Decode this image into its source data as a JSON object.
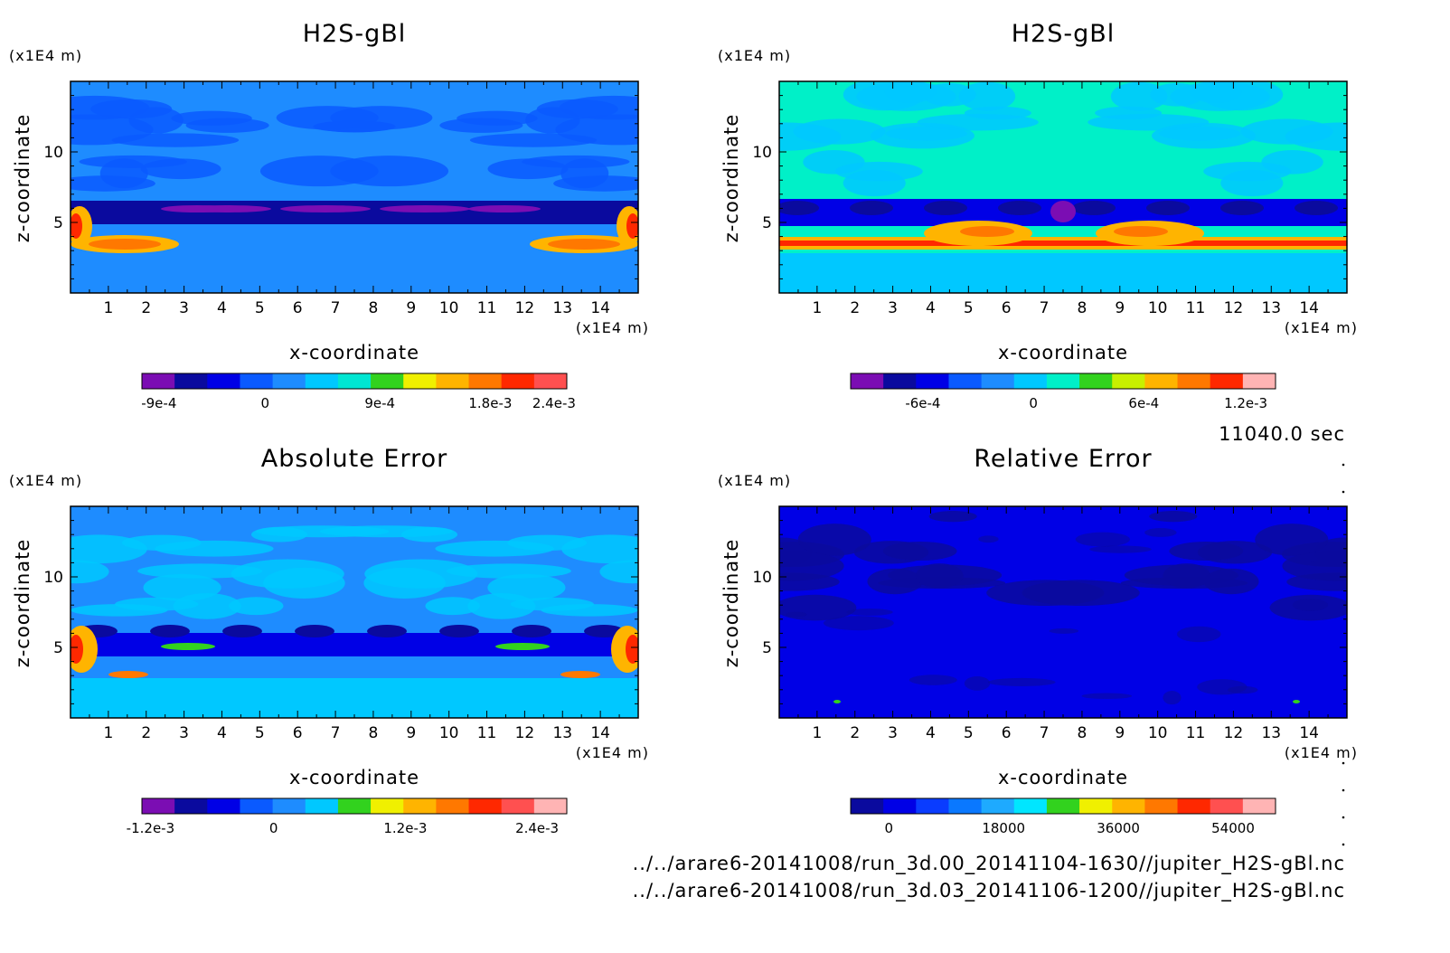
{
  "page": {
    "time_label": "11040.0 sec",
    "footer_lines": [
      "../../arare6-20141008/run_3d.00_20141104-1630//jupiter_H2S-gBl.nc",
      "../../arare6-20141008/run_3d.03_20141106-1200//jupiter_H2S-gBl.nc"
    ]
  },
  "chart_data": [
    {
      "type": "heatmap",
      "title": "H2S-gBl",
      "xlabel": "x-coordinate",
      "ylabel": "z-coordinate",
      "x_unit": "(x1E4 m)",
      "y_unit": "(x1E4 m)",
      "xlim": [
        0,
        15
      ],
      "ylim": [
        0,
        15
      ],
      "x_ticks": [
        1,
        2,
        3,
        4,
        5,
        6,
        7,
        8,
        9,
        10,
        11,
        12,
        13,
        14
      ],
      "y_ticks": [
        5,
        10
      ],
      "colorbar": {
        "colors": [
          "#7b0db3",
          "#0a0a9e",
          "#0000e6",
          "#0a5aff",
          "#1e8cff",
          "#00c8ff",
          "#00e6d2",
          "#32d21e",
          "#f0f000",
          "#ffb400",
          "#ff7800",
          "#ff2800",
          "#ff5050"
        ],
        "tick_labels": [
          "-9e-4",
          "0",
          "9e-4",
          "1.8e-3",
          "2.4e-3"
        ]
      }
    },
    {
      "type": "heatmap",
      "title": "H2S-gBl",
      "xlabel": "x-coordinate",
      "ylabel": "z-coordinate",
      "x_unit": "(x1E4 m)",
      "y_unit": "(x1E4 m)",
      "xlim": [
        0,
        15
      ],
      "ylim": [
        0,
        15
      ],
      "x_ticks": [
        1,
        2,
        3,
        4,
        5,
        6,
        7,
        8,
        9,
        10,
        11,
        12,
        13,
        14
      ],
      "y_ticks": [
        5,
        10
      ],
      "colorbar": {
        "colors": [
          "#7b0db3",
          "#0a0a9e",
          "#0000e6",
          "#0a5aff",
          "#1e8cff",
          "#00c8ff",
          "#00f0c8",
          "#32d21e",
          "#c8f000",
          "#ffb400",
          "#ff7800",
          "#ff2800",
          "#ffb4b4"
        ],
        "tick_labels": [
          "-6e-4",
          "0",
          "6e-4",
          "1.2e-3"
        ]
      }
    },
    {
      "type": "heatmap",
      "title": "Absolute Error",
      "xlabel": "x-coordinate",
      "ylabel": "z-coordinate",
      "x_unit": "(x1E4 m)",
      "y_unit": "(x1E4 m)",
      "xlim": [
        0,
        15
      ],
      "ylim": [
        0,
        15
      ],
      "x_ticks": [
        1,
        2,
        3,
        4,
        5,
        6,
        7,
        8,
        9,
        10,
        11,
        12,
        13,
        14
      ],
      "y_ticks": [
        5,
        10
      ],
      "colorbar": {
        "colors": [
          "#7b0db3",
          "#0a0a9e",
          "#0000e6",
          "#0a5aff",
          "#1e8cff",
          "#00c8ff",
          "#32d21e",
          "#f0f000",
          "#ffb400",
          "#ff7800",
          "#ff2800",
          "#ff5050",
          "#ffb4b4"
        ],
        "tick_labels": [
          "-1.2e-3",
          "0",
          "1.2e-3",
          "2.4e-3"
        ]
      }
    },
    {
      "type": "heatmap",
      "title": "Relative Error",
      "xlabel": "x-coordinate",
      "ylabel": "z-coordinate",
      "x_unit": "(x1E4 m)",
      "y_unit": "(x1E4 m)",
      "xlim": [
        0,
        15
      ],
      "ylim": [
        0,
        15
      ],
      "x_ticks": [
        1,
        2,
        3,
        4,
        5,
        6,
        7,
        8,
        9,
        10,
        11,
        12,
        13,
        14
      ],
      "y_ticks": [
        5,
        10
      ],
      "colorbar": {
        "colors": [
          "#0a0a9e",
          "#0000e6",
          "#0a3cff",
          "#0a78ff",
          "#1eaaff",
          "#00e6ff",
          "#32d21e",
          "#f0f000",
          "#ffb400",
          "#ff7800",
          "#ff2800",
          "#ff5050",
          "#ffb4b4"
        ],
        "tick_labels": [
          "0",
          "18000",
          "36000",
          "54000"
        ]
      }
    }
  ]
}
